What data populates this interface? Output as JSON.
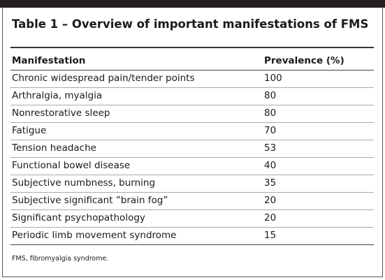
{
  "table": {
    "title": "Table 1 – Overview of important manifestations of FMS",
    "header": [
      "Manifestation",
      "Prevalence (%)"
    ],
    "rows": [
      [
        "Chronic widespread pain/tender points",
        100
      ],
      [
        "Arthralgia, myalgia",
        80
      ],
      [
        "Nonrestorative sleep",
        80
      ],
      [
        "Fatigue",
        70
      ],
      [
        "Tension headache",
        53
      ],
      [
        "Functional bowel disease",
        40
      ],
      [
        "Subjective numbness, burning",
        35
      ],
      [
        "Subjective significant ”brain fog”",
        20
      ],
      [
        "Significant psychopathology",
        20
      ],
      [
        "Periodic limb movement syndrome",
        15
      ]
    ],
    "footnote": "FMS, fibromyalgia syndrome."
  }
}
